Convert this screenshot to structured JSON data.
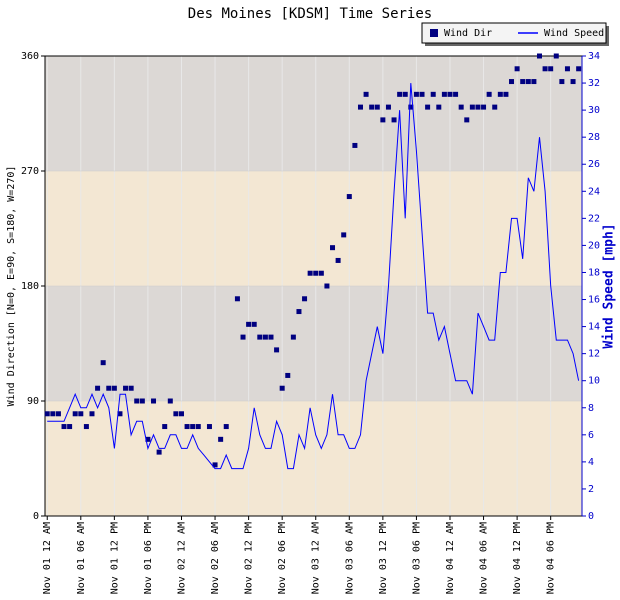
{
  "chart_data": {
    "type": "combo",
    "title": "Des Moines [KDSM] Time Series",
    "y_label": "Wind Direction [N=0, E=90, S=180, W=270]",
    "y2_label": "Wind Speed [mph]",
    "categories": [
      "Nov 01 12 AM",
      null,
      null,
      null,
      null,
      null,
      "Nov 01 06 AM",
      null,
      null,
      null,
      null,
      null,
      "Nov 01 12 PM",
      null,
      null,
      null,
      null,
      null,
      "Nov 01 06 PM",
      null,
      null,
      null,
      null,
      null,
      "Nov 02 12 AM",
      null,
      null,
      null,
      null,
      null,
      "Nov 02 06 AM",
      null,
      null,
      null,
      null,
      null,
      "Nov 02 12 PM",
      null,
      null,
      null,
      null,
      null,
      "Nov 02 06 PM",
      null,
      null,
      null,
      null,
      null,
      "Nov 03 12 AM",
      null,
      null,
      null,
      null,
      null,
      "Nov 03 06 AM",
      null,
      null,
      null,
      null,
      null,
      "Nov 03 12 PM",
      null,
      null,
      null,
      null,
      null,
      "Nov 03 06 PM",
      null,
      null,
      null,
      null,
      null,
      "Nov 04 12 AM",
      null,
      null,
      null,
      null,
      null,
      "Nov 04 06 AM",
      null,
      null,
      null,
      null,
      null,
      "Nov 04 12 PM",
      null,
      null,
      null,
      null,
      null,
      "Nov 04 06 PM",
      null,
      null,
      null,
      null,
      null
    ],
    "series": [
      {
        "name": "Wind Dir",
        "type": "scatter",
        "color": "#000080",
        "values": [
          80,
          80,
          80,
          70,
          70,
          80,
          80,
          70,
          80,
          100,
          120,
          100,
          100,
          80,
          100,
          100,
          90,
          90,
          60,
          90,
          50,
          70,
          90,
          80,
          80,
          70,
          70,
          70,
          null,
          70,
          40,
          60,
          70,
          null,
          170,
          140,
          150,
          150,
          140,
          140,
          140,
          130,
          100,
          110,
          140,
          160,
          170,
          190,
          190,
          190,
          180,
          210,
          200,
          220,
          250,
          290,
          320,
          330,
          320,
          320,
          310,
          320,
          310,
          330,
          330,
          320,
          330,
          330,
          320,
          330,
          320,
          330,
          330,
          330,
          320,
          310,
          320,
          320,
          320,
          330,
          320,
          330,
          330,
          340,
          350,
          340,
          340,
          340,
          360,
          350,
          350,
          360,
          340,
          350,
          340,
          350
        ]
      },
      {
        "name": "Wind Speed",
        "type": "line",
        "color": "#0000ff",
        "axis": "y2",
        "values": [
          7,
          7,
          7,
          7,
          8,
          9,
          8,
          8,
          9,
          8,
          9,
          8,
          5,
          9,
          9,
          6,
          7,
          7,
          5,
          6,
          5,
          5,
          6,
          6,
          5,
          5,
          6,
          5,
          4.5,
          4,
          3.5,
          3.5,
          4.5,
          3.5,
          3.5,
          3.5,
          5,
          8,
          6,
          5,
          5,
          7,
          6,
          3.5,
          3.5,
          6,
          5,
          8,
          6,
          5,
          6,
          9,
          6,
          6,
          5,
          5,
          6,
          10,
          12,
          14,
          12,
          17,
          24,
          30,
          22,
          32,
          27,
          21,
          15,
          15,
          13,
          14,
          12,
          10,
          10,
          10,
          9,
          15,
          14,
          13,
          13,
          18,
          18,
          22,
          22,
          19,
          25,
          24,
          28,
          24,
          17,
          13,
          13,
          13,
          12,
          10
        ]
      }
    ],
    "ylim": [
      0,
      360
    ],
    "yticks": [
      0,
      90,
      180,
      270,
      360
    ],
    "y2lim": [
      0,
      34
    ],
    "y2ticks": [
      0,
      2,
      4,
      6,
      8,
      10,
      12,
      14,
      16,
      18,
      20,
      22,
      24,
      26,
      28,
      30,
      32,
      34
    ],
    "band_colors": [
      "#f3e7d3",
      "#dcd8d5"
    ],
    "grid": true,
    "legend": "top-right"
  }
}
